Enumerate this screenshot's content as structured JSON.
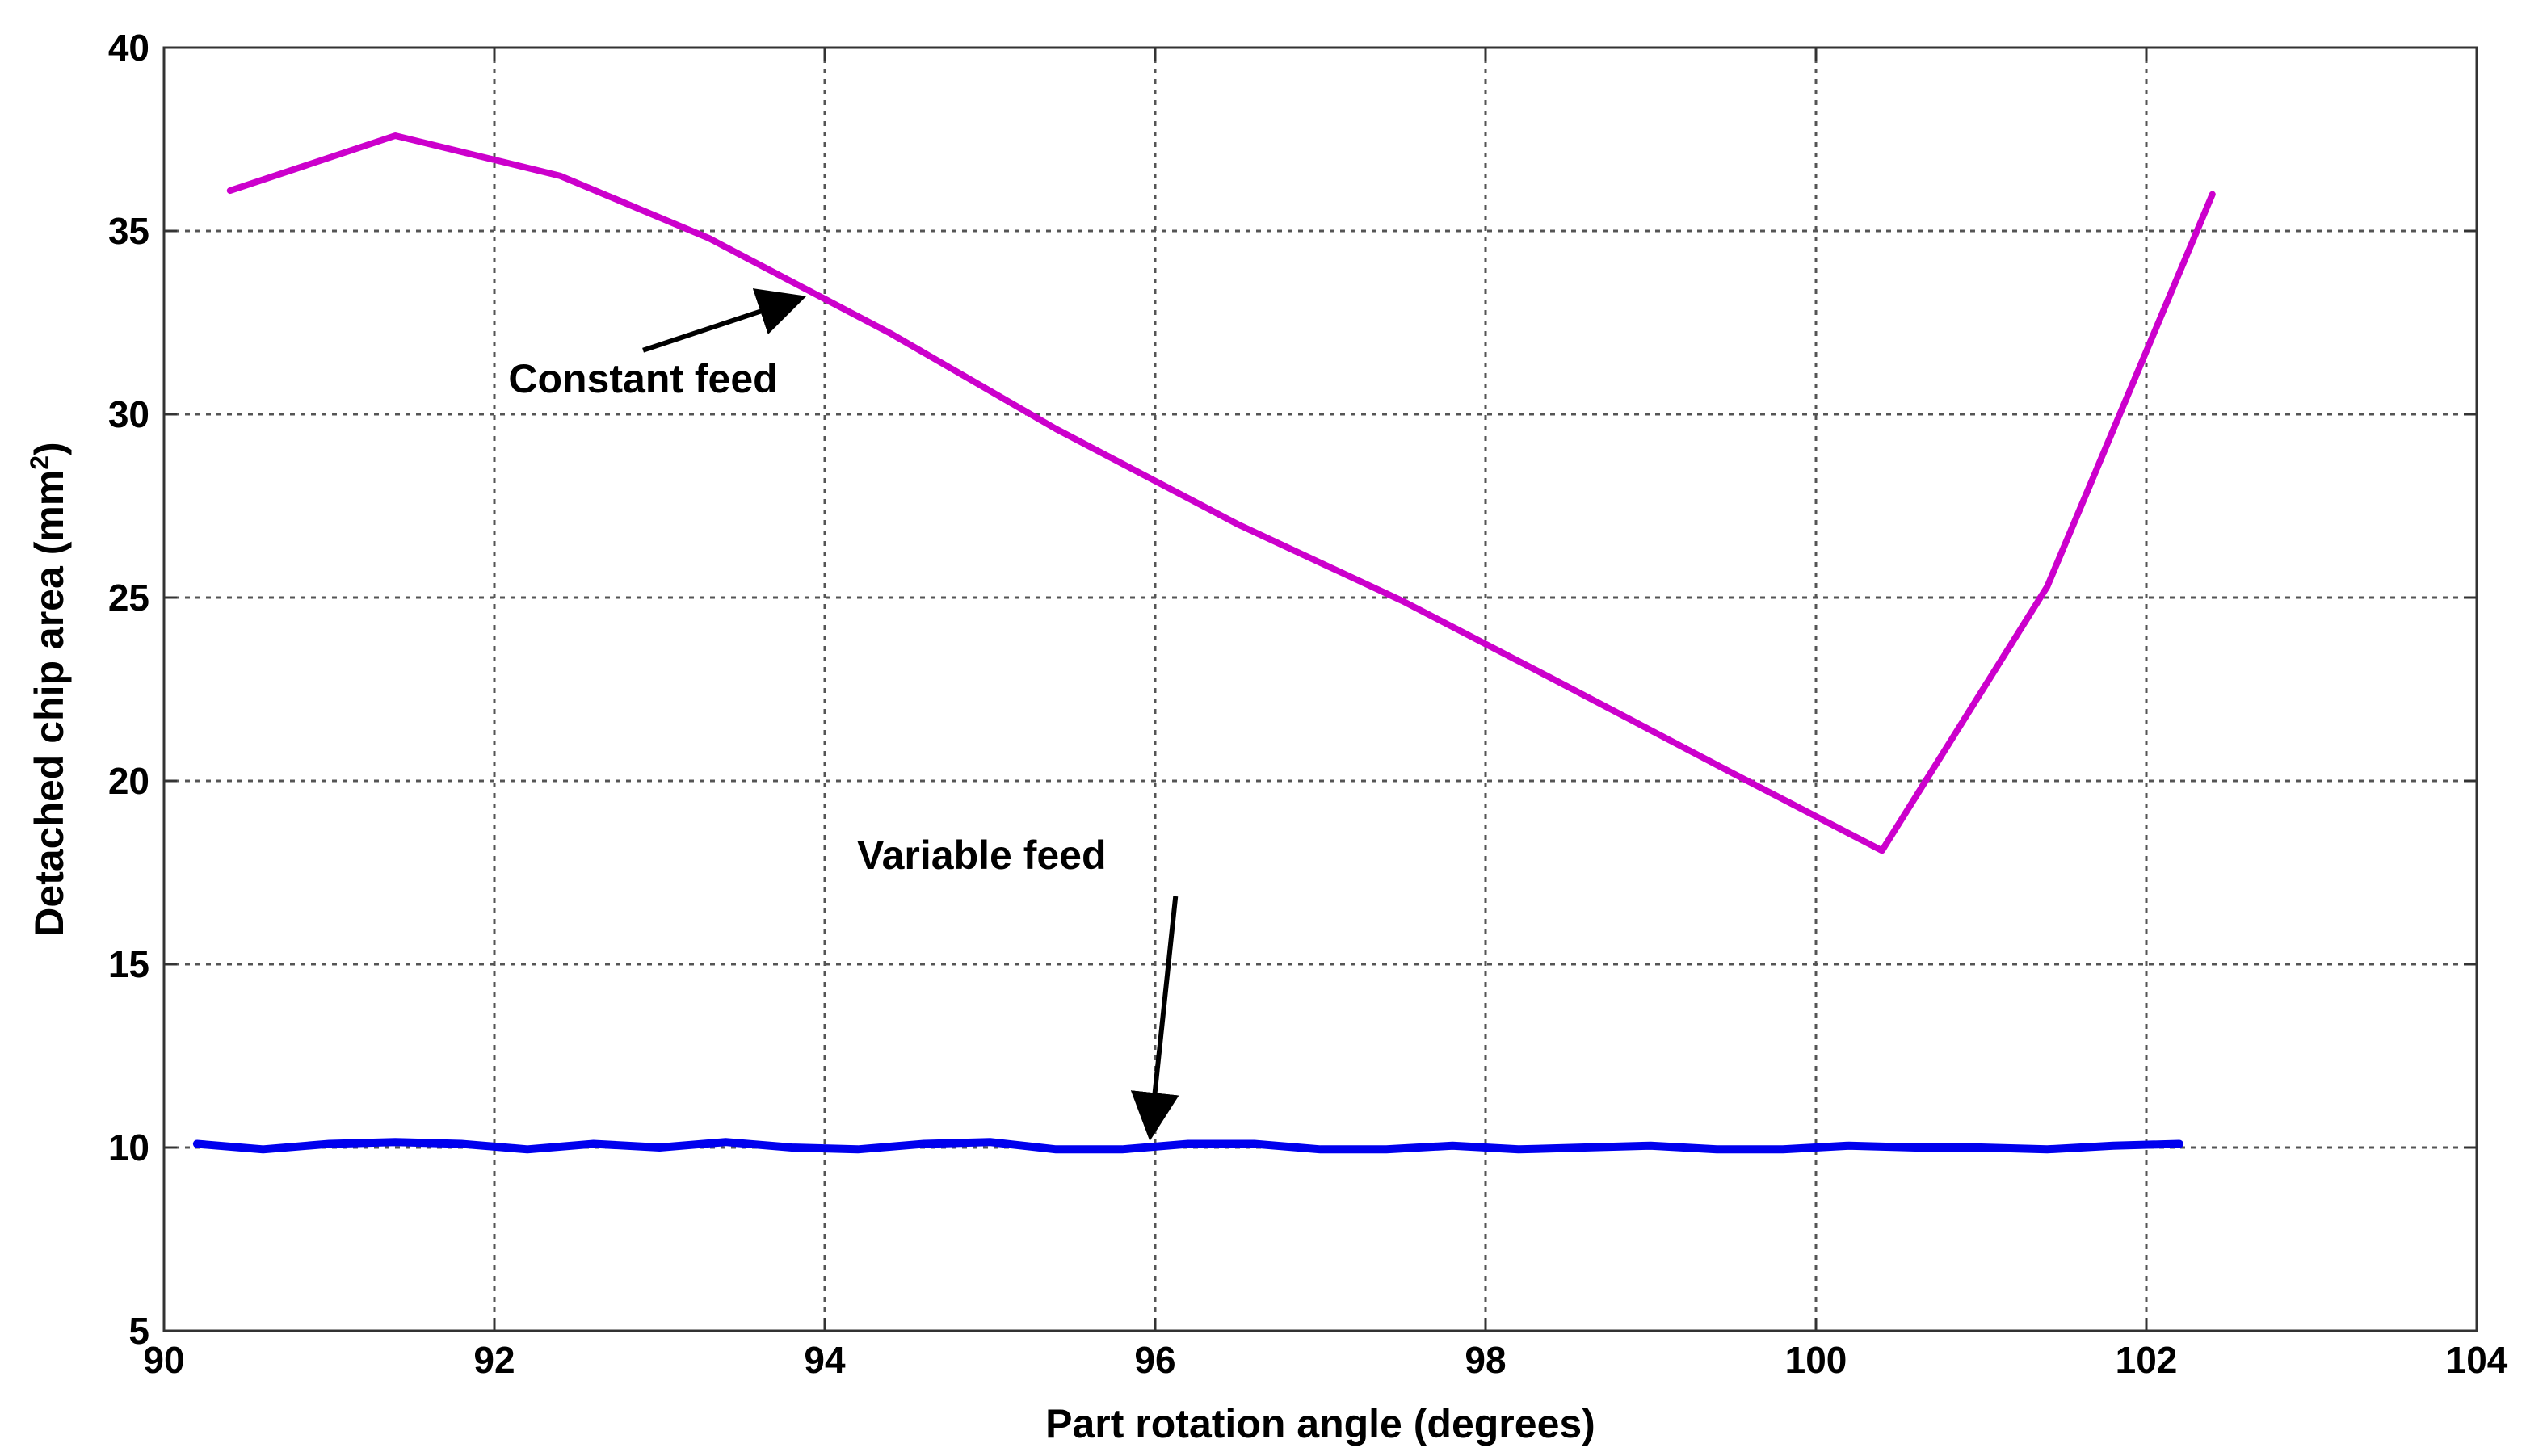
{
  "chart_data": {
    "type": "line",
    "title": "",
    "xlabel": "Part rotation angle (degrees)",
    "ylabel_main": "Detached chip area (mm",
    "ylabel_sup": "2",
    "ylabel_close": ")",
    "xlim": [
      90,
      104
    ],
    "ylim": [
      5,
      40
    ],
    "xticks": [
      90,
      92,
      94,
      96,
      98,
      100,
      102,
      104
    ],
    "yticks": [
      5,
      10,
      15,
      20,
      25,
      30,
      35,
      40
    ],
    "xtick_labels": [
      "90",
      "92",
      "94",
      "96",
      "98",
      "100",
      "102",
      "104"
    ],
    "ytick_labels": [
      "5",
      "10",
      "15",
      "20",
      "25",
      "30",
      "35",
      "40"
    ],
    "grid": true,
    "series": [
      {
        "name": "Constant feed",
        "color": "#cc00cc",
        "x": [
          90.4,
          91.4,
          92.4,
          93.3,
          94.4,
          95.4,
          96.5,
          97.5,
          98.4,
          99.5,
          100.4,
          101.4,
          102.4
        ],
        "y": [
          36.1,
          37.6,
          36.5,
          34.8,
          32.2,
          29.6,
          27.0,
          24.9,
          22.8,
          20.2,
          18.1,
          25.3,
          36.0
        ]
      },
      {
        "name": "Variable feed",
        "color": "#0000ee",
        "x": [
          90.2,
          90.6,
          91.0,
          91.4,
          91.8,
          92.2,
          92.6,
          93.0,
          93.4,
          93.8,
          94.2,
          94.6,
          95.0,
          95.4,
          95.8,
          96.2,
          96.6,
          97.0,
          97.4,
          97.8,
          98.2,
          98.6,
          99.0,
          99.4,
          99.8,
          100.2,
          100.6,
          101.0,
          101.4,
          101.8,
          102.2
        ],
        "y": [
          10.1,
          9.95,
          10.1,
          10.15,
          10.1,
          9.95,
          10.1,
          10.0,
          10.15,
          10.0,
          9.95,
          10.1,
          10.15,
          9.95,
          9.95,
          10.1,
          10.1,
          9.95,
          9.95,
          10.05,
          9.95,
          10.0,
          10.05,
          9.95,
          9.95,
          10.05,
          10.0,
          10.0,
          9.95,
          10.05,
          10.1
        ]
      }
    ],
    "annotations": [
      {
        "id": "constant",
        "text": "Constant feed",
        "point": [
          93.9,
          33.4
        ],
        "text_at": [
          92.9,
          30.6
        ]
      },
      {
        "id": "variable",
        "text": "Variable feed",
        "point": [
          96.0,
          10.0
        ],
        "text_at": [
          94.95,
          17.6
        ]
      }
    ]
  }
}
